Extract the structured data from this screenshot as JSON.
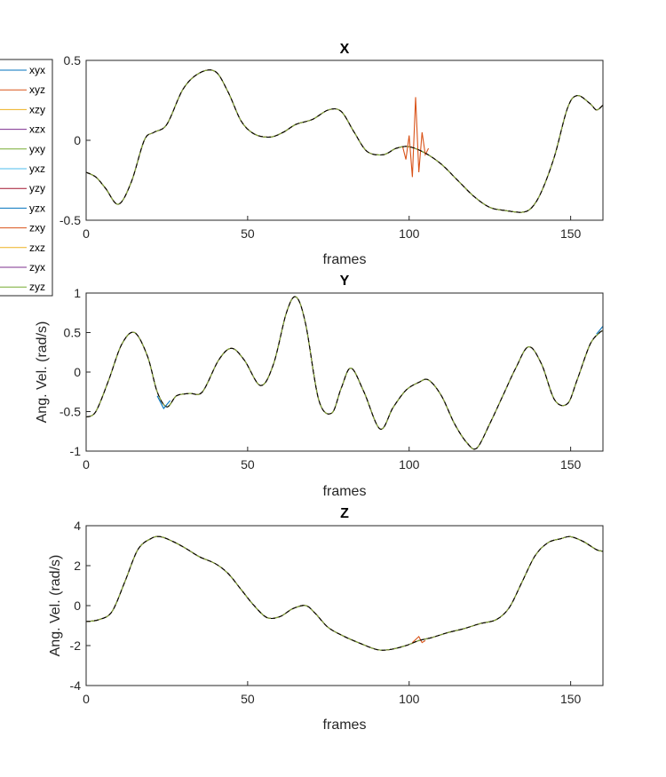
{
  "colors": {
    "series": [
      "#0072BD",
      "#D95319",
      "#EDB120",
      "#7E2F8E",
      "#77AC30",
      "#4DBEEE",
      "#A2142F",
      "#0072BD",
      "#D95319",
      "#EDB120",
      "#7E2F8E",
      "#77AC30"
    ],
    "dash": "#000000"
  },
  "legend": {
    "entries": [
      "xyx",
      "xyz",
      "xzy",
      "xzx",
      "yxy",
      "yxz",
      "yzy",
      "yzx",
      "zxy",
      "zxz",
      "zyx",
      "zyz"
    ]
  },
  "chart_data": [
    {
      "type": "line",
      "title": "X",
      "xlabel": "frames",
      "ylabel": "",
      "xlim": [
        0,
        160
      ],
      "ylim": [
        -0.5,
        0.5
      ],
      "xticks": [
        0,
        50,
        100,
        150
      ],
      "yticks": [
        -0.5,
        0,
        0.5
      ],
      "series_count": 12,
      "x": [
        0,
        3,
        6,
        10,
        14,
        18,
        21,
        25,
        30,
        35,
        40,
        44,
        48,
        52,
        57,
        61,
        65,
        70,
        75,
        79,
        83,
        87,
        92,
        96,
        100,
        105,
        110,
        115,
        120,
        125,
        130,
        135,
        138,
        141,
        145,
        149,
        152,
        156,
        158,
        160
      ],
      "y": [
        -0.2,
        -0.23,
        -0.3,
        -0.4,
        -0.26,
        0.0,
        0.05,
        0.1,
        0.32,
        0.42,
        0.43,
        0.3,
        0.12,
        0.04,
        0.02,
        0.05,
        0.1,
        0.13,
        0.19,
        0.18,
        0.05,
        -0.07,
        -0.09,
        -0.05,
        -0.04,
        -0.08,
        -0.15,
        -0.25,
        -0.35,
        -0.42,
        -0.44,
        -0.45,
        -0.42,
        -0.32,
        -0.1,
        0.2,
        0.28,
        0.23,
        0.19,
        0.22
      ],
      "deviations": [
        {
          "name": "xyz",
          "x": [
            98,
            99,
            100,
            101,
            102,
            103,
            104,
            105,
            106
          ],
          "y": [
            -0.04,
            -0.12,
            0.03,
            -0.23,
            0.27,
            -0.2,
            0.05,
            -0.09,
            -0.05
          ]
        }
      ]
    },
    {
      "type": "line",
      "title": "Y",
      "xlabel": "frames",
      "ylabel": "Ang. Vel. (rad/s)",
      "xlim": [
        0,
        160
      ],
      "ylim": [
        -1,
        1
      ],
      "xticks": [
        0,
        50,
        100,
        150
      ],
      "yticks": [
        -1,
        -0.5,
        0,
        0.5,
        1
      ],
      "series_count": 12,
      "x": [
        0,
        3,
        7,
        11,
        15,
        19,
        22,
        25,
        28,
        32,
        36,
        41,
        45,
        49,
        54,
        58,
        62,
        65,
        68,
        72,
        76,
        79,
        82,
        86,
        91,
        95,
        99,
        103,
        106,
        110,
        114,
        118,
        121,
        125,
        129,
        133,
        137,
        141,
        145,
        149,
        152,
        156,
        159,
        160
      ],
      "y": [
        -0.57,
        -0.5,
        -0.1,
        0.35,
        0.5,
        0.2,
        -0.25,
        -0.44,
        -0.3,
        -0.27,
        -0.25,
        0.15,
        0.3,
        0.15,
        -0.17,
        0.1,
        0.75,
        0.95,
        0.6,
        -0.35,
        -0.52,
        -0.2,
        0.05,
        -0.25,
        -0.72,
        -0.45,
        -0.23,
        -0.13,
        -0.1,
        -0.3,
        -0.65,
        -0.9,
        -0.96,
        -0.65,
        -0.3,
        0.05,
        0.32,
        0.1,
        -0.35,
        -0.4,
        -0.1,
        0.35,
        0.5,
        0.52
      ],
      "deviations": [
        {
          "name": "yzx",
          "x": [
            22,
            24,
            26
          ],
          "y": [
            -0.3,
            -0.46,
            -0.36
          ]
        },
        {
          "name": "yzx",
          "x": [
            158,
            159,
            160
          ],
          "y": [
            0.48,
            0.53,
            0.58
          ]
        }
      ]
    },
    {
      "type": "line",
      "title": "Z",
      "xlabel": "frames",
      "ylabel": "Ang. Vel. (rad/s)",
      "xlim": [
        0,
        160
      ],
      "ylim": [
        -4,
        4
      ],
      "xticks": [
        0,
        50,
        100,
        150
      ],
      "yticks": [
        -4,
        -2,
        0,
        2,
        4
      ],
      "series_count": 12,
      "x": [
        0,
        4,
        8,
        12,
        16,
        20,
        23,
        27,
        31,
        35,
        40,
        44,
        48,
        52,
        56,
        60,
        64,
        68,
        71,
        75,
        80,
        85,
        90,
        94,
        99,
        103,
        107,
        112,
        117,
        122,
        127,
        131,
        135,
        139,
        143,
        147,
        150,
        154,
        158,
        160
      ],
      "y": [
        -0.8,
        -0.7,
        -0.3,
        1.2,
        2.8,
        3.35,
        3.45,
        3.2,
        2.85,
        2.45,
        2.1,
        1.6,
        0.8,
        0.0,
        -0.6,
        -0.55,
        -0.15,
        0.0,
        -0.4,
        -1.1,
        -1.55,
        -1.9,
        -2.2,
        -2.2,
        -2.0,
        -1.75,
        -1.6,
        -1.35,
        -1.15,
        -0.9,
        -0.7,
        -0.1,
        1.2,
        2.5,
        3.15,
        3.35,
        3.45,
        3.2,
        2.8,
        2.72
      ],
      "deviations": [
        {
          "name": "xyz",
          "x": [
            101,
            102,
            103,
            104,
            105
          ],
          "y": [
            -1.85,
            -1.7,
            -1.55,
            -1.85,
            -1.75
          ]
        }
      ]
    }
  ]
}
